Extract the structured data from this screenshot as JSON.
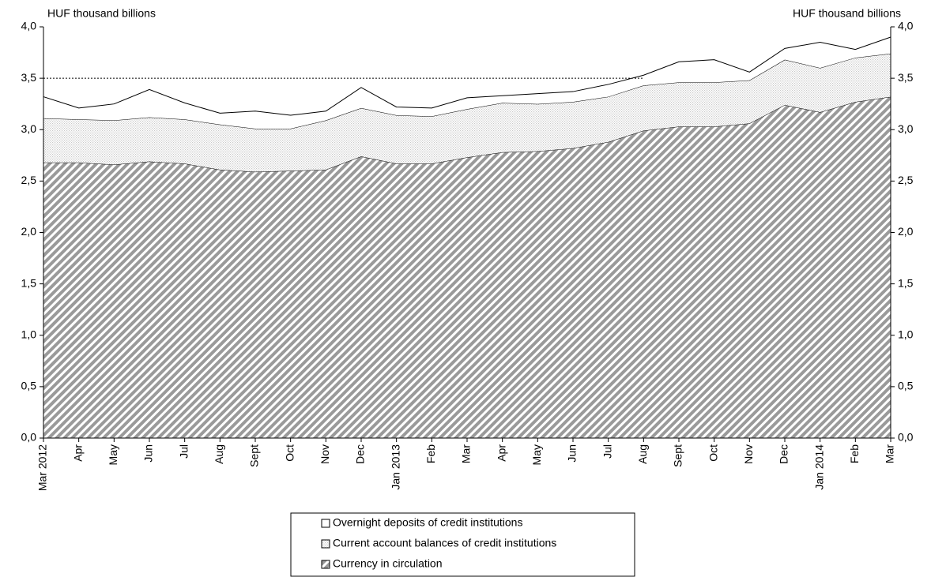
{
  "chart_data": {
    "type": "stacked_area",
    "y_label": "HUF thousand billions",
    "y2_label": "HUF thousand billions",
    "categories": [
      "Mar 2012",
      "Apr",
      "May",
      "Jun",
      "Jul",
      "Aug",
      "Sept",
      "Oct",
      "Nov",
      "Dec",
      "Jan 2013",
      "Feb",
      "Mar",
      "Apr",
      "May",
      "Jun",
      "Jul",
      "Aug",
      "Sept",
      "Oct",
      "Nov",
      "Dec",
      "Jan 2014",
      "Feb",
      "Mar"
    ],
    "series": [
      {
        "name": "Currency in circulation",
        "color": "#9a9a9a",
        "pattern": "hatch",
        "values": [
          2.68,
          2.68,
          2.66,
          2.69,
          2.67,
          2.61,
          2.59,
          2.6,
          2.61,
          2.74,
          2.67,
          2.67,
          2.73,
          2.78,
          2.79,
          2.82,
          2.88,
          2.99,
          3.03,
          3.03,
          3.06,
          3.24,
          3.17,
          3.27,
          3.32
        ]
      },
      {
        "name": "Current account balances of credit institutions",
        "color": "#c8c8c8",
        "pattern": "dots",
        "values": [
          0.43,
          0.42,
          0.43,
          0.43,
          0.43,
          0.44,
          0.42,
          0.41,
          0.48,
          0.47,
          0.47,
          0.46,
          0.47,
          0.48,
          0.46,
          0.45,
          0.44,
          0.44,
          0.43,
          0.43,
          0.42,
          0.44,
          0.43,
          0.43,
          0.42
        ]
      },
      {
        "name": "Overnight deposits of credit institutions",
        "color": "#ffffff",
        "pattern": "solid",
        "values": [
          0.21,
          0.11,
          0.16,
          0.27,
          0.16,
          0.11,
          0.17,
          0.13,
          0.09,
          0.2,
          0.08,
          0.08,
          0.11,
          0.07,
          0.1,
          0.1,
          0.12,
          0.1,
          0.2,
          0.22,
          0.08,
          0.11,
          0.25,
          0.08,
          0.16
        ]
      }
    ],
    "reference_line": 3.5,
    "ylim": [
      0,
      4
    ],
    "yticks": [
      {
        "value": 0,
        "label": "0,0"
      },
      {
        "value": 0.5,
        "label": "0,5"
      },
      {
        "value": 1,
        "label": "1,0"
      },
      {
        "value": 1.5,
        "label": "1,5"
      },
      {
        "value": 2,
        "label": "2,0"
      },
      {
        "value": 2.5,
        "label": "2,5"
      },
      {
        "value": 3,
        "label": "3,0"
      },
      {
        "value": 3.5,
        "label": "3,5"
      },
      {
        "value": 4,
        "label": "4,0"
      }
    ],
    "y2lim": [
      0,
      4
    ],
    "y2ticks": [
      {
        "value": 0,
        "label": "0,0"
      },
      {
        "value": 0.5,
        "label": "0,5"
      },
      {
        "value": 1,
        "label": "1,0"
      },
      {
        "value": 1.5,
        "label": "1,5"
      },
      {
        "value": 2,
        "label": "2,0"
      },
      {
        "value": 2.5,
        "label": "2,5"
      },
      {
        "value": 3,
        "label": "3,0"
      },
      {
        "value": 3.5,
        "label": "3,5"
      },
      {
        "value": 4,
        "label": "4,0"
      }
    ],
    "legend": "bottom"
  }
}
